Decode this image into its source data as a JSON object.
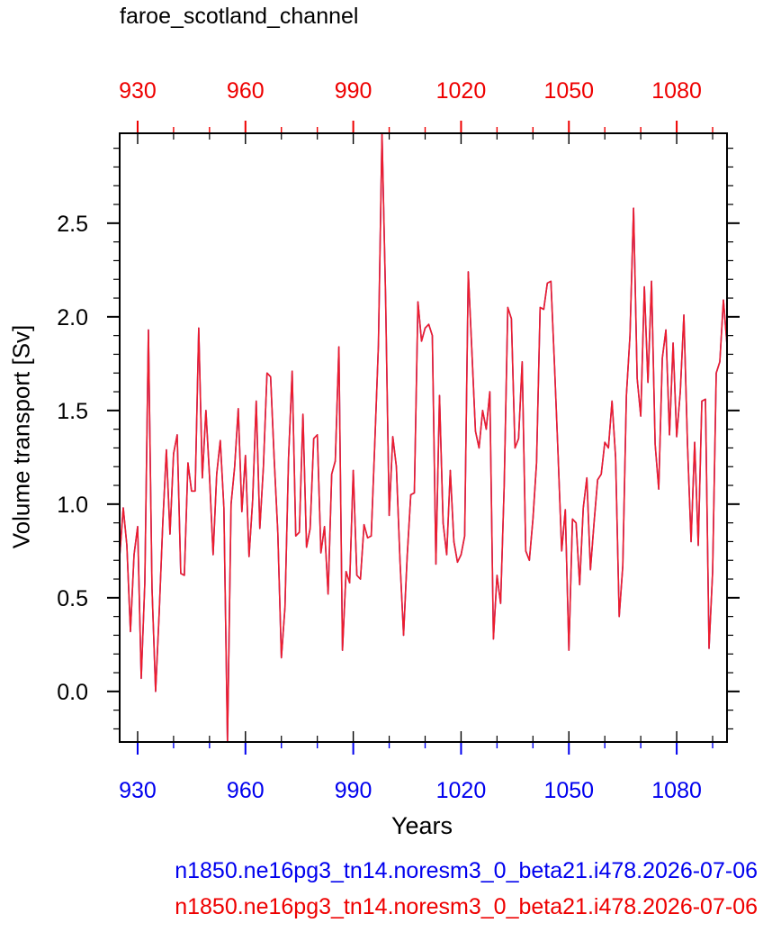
{
  "title": "faroe_scotland_channel",
  "xlabel": "Years",
  "ylabel": "Volume transport [Sv]",
  "captions": [
    {
      "text": "n1850.ne16pg3_tn14.noresm3_0_beta21.i478.2026-07-06",
      "color": "#0000ee"
    },
    {
      "text": "n1850.ne16pg3_tn14.noresm3_0_beta21.i478.2026-07-06",
      "color": "#ee0000"
    }
  ],
  "colors": {
    "bottom_axis": "#0000ee",
    "top_axis": "#ee0000",
    "series_blue": "#4b3fd6",
    "series_red": "#ee1c2c"
  },
  "chart_data": {
    "type": "line",
    "title": "faroe_scotland_channel",
    "xlabel": "Years",
    "ylabel": "Volume transport [Sv]",
    "xlim": [
      925,
      1094
    ],
    "ylim": [
      -0.27,
      2.98
    ],
    "xticks": [
      930,
      960,
      990,
      1020,
      1050,
      1080
    ],
    "yticks": [
      0.0,
      0.5,
      1.0,
      1.5,
      2.0,
      2.5
    ],
    "ytick_labels": [
      "0.0",
      "0.5",
      "1.0",
      "1.5",
      "2.0",
      "2.5"
    ],
    "grid": false,
    "x_start": 925,
    "series": [
      {
        "name": "n1850.ne16pg3_tn14.noresm3_0_beta21.i478.2026-07-06",
        "color": "#4b3fd6",
        "values": [
          0.72,
          0.98,
          0.78,
          0.32,
          0.73,
          0.88,
          0.07,
          0.58,
          1.93,
          0.55,
          0.0,
          0.42,
          0.9,
          1.29,
          0.84,
          1.27,
          1.37,
          0.63,
          0.62,
          1.22,
          1.07,
          1.07,
          1.94,
          1.14,
          1.5,
          1.15,
          0.73,
          1.16,
          1.34,
          0.98,
          -0.27,
          1.0,
          1.2,
          1.51,
          0.96,
          1.26,
          0.72,
          1.02,
          1.55,
          0.87,
          1.2,
          1.7,
          1.68,
          1.24,
          0.85,
          0.18,
          0.45,
          1.25,
          1.71,
          0.83,
          0.85,
          1.48,
          0.77,
          0.87,
          1.35,
          1.37,
          0.74,
          0.88,
          0.52,
          1.16,
          1.23,
          1.84,
          0.22,
          0.64,
          0.58,
          1.18,
          0.62,
          0.6,
          0.89,
          0.82,
          0.83,
          1.33,
          1.85,
          2.98,
          2.1,
          0.94,
          1.36,
          1.2,
          0.7,
          0.3,
          0.72,
          1.05,
          1.06,
          2.08,
          1.87,
          1.94,
          1.96,
          1.9,
          0.68,
          1.58,
          0.9,
          0.73,
          1.18,
          0.8,
          0.69,
          0.73,
          0.83,
          2.24,
          1.82,
          1.39,
          1.3,
          1.5,
          1.4,
          1.6,
          0.28,
          0.62,
          0.47,
          1.1,
          2.05,
          1.99,
          1.3,
          1.35,
          1.76,
          0.75,
          0.7,
          0.92,
          1.22,
          2.05,
          2.04,
          2.18,
          2.19,
          1.74,
          1.26,
          0.75,
          0.97,
          0.22,
          0.92,
          0.9,
          0.57,
          0.98,
          1.14,
          0.65,
          0.9,
          1.13,
          1.16,
          1.33,
          1.3,
          1.55,
          1.25,
          0.4,
          0.67,
          1.58,
          1.9,
          2.58,
          1.67,
          1.47,
          2.16,
          1.65,
          2.19,
          1.32,
          1.08,
          1.78,
          1.93,
          1.37,
          1.86,
          1.36,
          1.6,
          2.01,
          1.32,
          0.8,
          1.33,
          0.78,
          1.55,
          1.56,
          0.23,
          0.64,
          1.7,
          1.76,
          2.09,
          1.85
        ]
      },
      {
        "name": "n1850.ne16pg3_tn14.noresm3_0_beta21.i478.2026-07-06",
        "color": "#ee1c2c",
        "values": [
          0.72,
          0.98,
          0.78,
          0.32,
          0.73,
          0.88,
          0.07,
          0.58,
          1.93,
          0.55,
          0.0,
          0.42,
          0.9,
          1.29,
          0.84,
          1.27,
          1.37,
          0.63,
          0.62,
          1.22,
          1.07,
          1.07,
          1.94,
          1.14,
          1.5,
          1.15,
          0.73,
          1.16,
          1.34,
          0.98,
          -0.27,
          1.0,
          1.2,
          1.51,
          0.96,
          1.26,
          0.72,
          1.02,
          1.55,
          0.87,
          1.2,
          1.7,
          1.68,
          1.24,
          0.85,
          0.18,
          0.45,
          1.25,
          1.71,
          0.83,
          0.85,
          1.48,
          0.77,
          0.87,
          1.35,
          1.37,
          0.74,
          0.88,
          0.52,
          1.16,
          1.23,
          1.84,
          0.22,
          0.64,
          0.58,
          1.18,
          0.62,
          0.6,
          0.89,
          0.82,
          0.83,
          1.33,
          1.85,
          2.98,
          2.1,
          0.94,
          1.36,
          1.2,
          0.7,
          0.3,
          0.72,
          1.05,
          1.06,
          2.08,
          1.87,
          1.94,
          1.96,
          1.9,
          0.68,
          1.58,
          0.9,
          0.73,
          1.18,
          0.8,
          0.69,
          0.73,
          0.83,
          2.24,
          1.82,
          1.39,
          1.3,
          1.5,
          1.4,
          1.6,
          0.28,
          0.62,
          0.47,
          1.1,
          2.05,
          1.99,
          1.3,
          1.35,
          1.76,
          0.75,
          0.7,
          0.92,
          1.22,
          2.05,
          2.04,
          2.18,
          2.19,
          1.74,
          1.26,
          0.75,
          0.97,
          0.22,
          0.92,
          0.9,
          0.57,
          0.98,
          1.14,
          0.65,
          0.9,
          1.13,
          1.16,
          1.33,
          1.3,
          1.55,
          1.25,
          0.4,
          0.67,
          1.58,
          1.9,
          2.58,
          1.67,
          1.47,
          2.16,
          1.65,
          2.19,
          1.32,
          1.08,
          1.78,
          1.93,
          1.37,
          1.86,
          1.36,
          1.6,
          2.01,
          1.32,
          0.8,
          1.33,
          0.78,
          1.55,
          1.56,
          0.23,
          0.64,
          1.7,
          1.76,
          2.09,
          1.85
        ]
      }
    ]
  }
}
